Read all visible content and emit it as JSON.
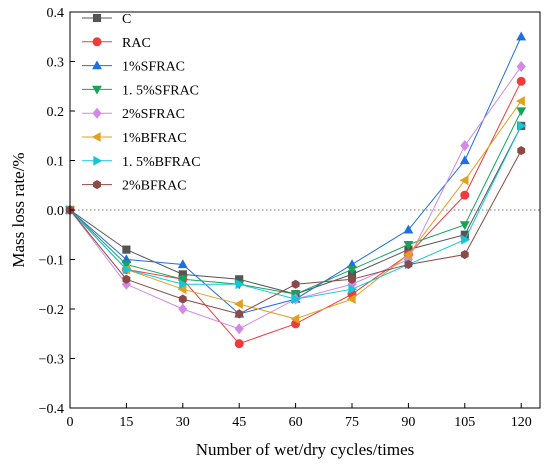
{
  "chart_data": {
    "type": "line",
    "xlabel": "Number of wet/dry cycles/times",
    "ylabel": "Mass loss rate/%",
    "xlim": [
      0,
      125
    ],
    "ylim": [
      -0.4,
      0.4
    ],
    "x": [
      0,
      15,
      30,
      45,
      60,
      75,
      90,
      105,
      120
    ],
    "x_ticks": [
      "0",
      "15",
      "30",
      "45",
      "60",
      "75",
      "90",
      "105",
      "120"
    ],
    "y_ticks": [
      "−0.4",
      "−0.3",
      "−0.2",
      "−0.1",
      "0.0",
      "0.1",
      "0.2",
      "0.3",
      "0.4"
    ],
    "y_tick_values": [
      -0.4,
      -0.3,
      -0.2,
      -0.1,
      0.0,
      0.1,
      0.2,
      0.3,
      0.4
    ],
    "reference_line": {
      "y": 0,
      "style": "dotted"
    },
    "grid": false,
    "legend_position": "top-left",
    "series": [
      {
        "name": "C",
        "color": "#555555",
        "marker": "square",
        "values": [
          0,
          -0.08,
          -0.13,
          -0.14,
          -0.17,
          -0.13,
          -0.08,
          -0.05,
          0.17
        ]
      },
      {
        "name": "RAC",
        "color": "#ef3b3b",
        "marker": "circle",
        "values": [
          0,
          -0.12,
          -0.14,
          -0.27,
          -0.23,
          -0.17,
          -0.09,
          0.03,
          0.26
        ]
      },
      {
        "name": "1%SFRAC",
        "color": "#1f6fe0",
        "marker": "triangle-up",
        "values": [
          0,
          -0.1,
          -0.11,
          -0.21,
          -0.18,
          -0.11,
          -0.04,
          0.1,
          0.35
        ]
      },
      {
        "name": "1. 5%SFRAC",
        "color": "#17a35a",
        "marker": "triangle-down",
        "values": [
          0,
          -0.11,
          -0.14,
          -0.15,
          -0.17,
          -0.12,
          -0.07,
          -0.03,
          0.2
        ]
      },
      {
        "name": "2%SFRAC",
        "color": "#d28ae6",
        "marker": "diamond",
        "values": [
          0,
          -0.15,
          -0.2,
          -0.24,
          -0.18,
          -0.15,
          -0.1,
          0.13,
          0.29
        ]
      },
      {
        "name": "1%BFRAC",
        "color": "#e0a020",
        "marker": "triangle-left",
        "values": [
          0,
          -0.12,
          -0.16,
          -0.19,
          -0.22,
          -0.18,
          -0.09,
          0.06,
          0.22
        ]
      },
      {
        "name": "1. 5%BFRAC",
        "color": "#12c8d8",
        "marker": "triangle-right",
        "values": [
          0,
          -0.12,
          -0.15,
          -0.15,
          -0.18,
          -0.16,
          -0.11,
          -0.06,
          0.17
        ]
      },
      {
        "name": "2%BFRAC",
        "color": "#8b4a48",
        "marker": "hexagon",
        "values": [
          0,
          -0.14,
          -0.18,
          -0.21,
          -0.15,
          -0.14,
          -0.11,
          -0.09,
          0.12
        ]
      }
    ]
  }
}
